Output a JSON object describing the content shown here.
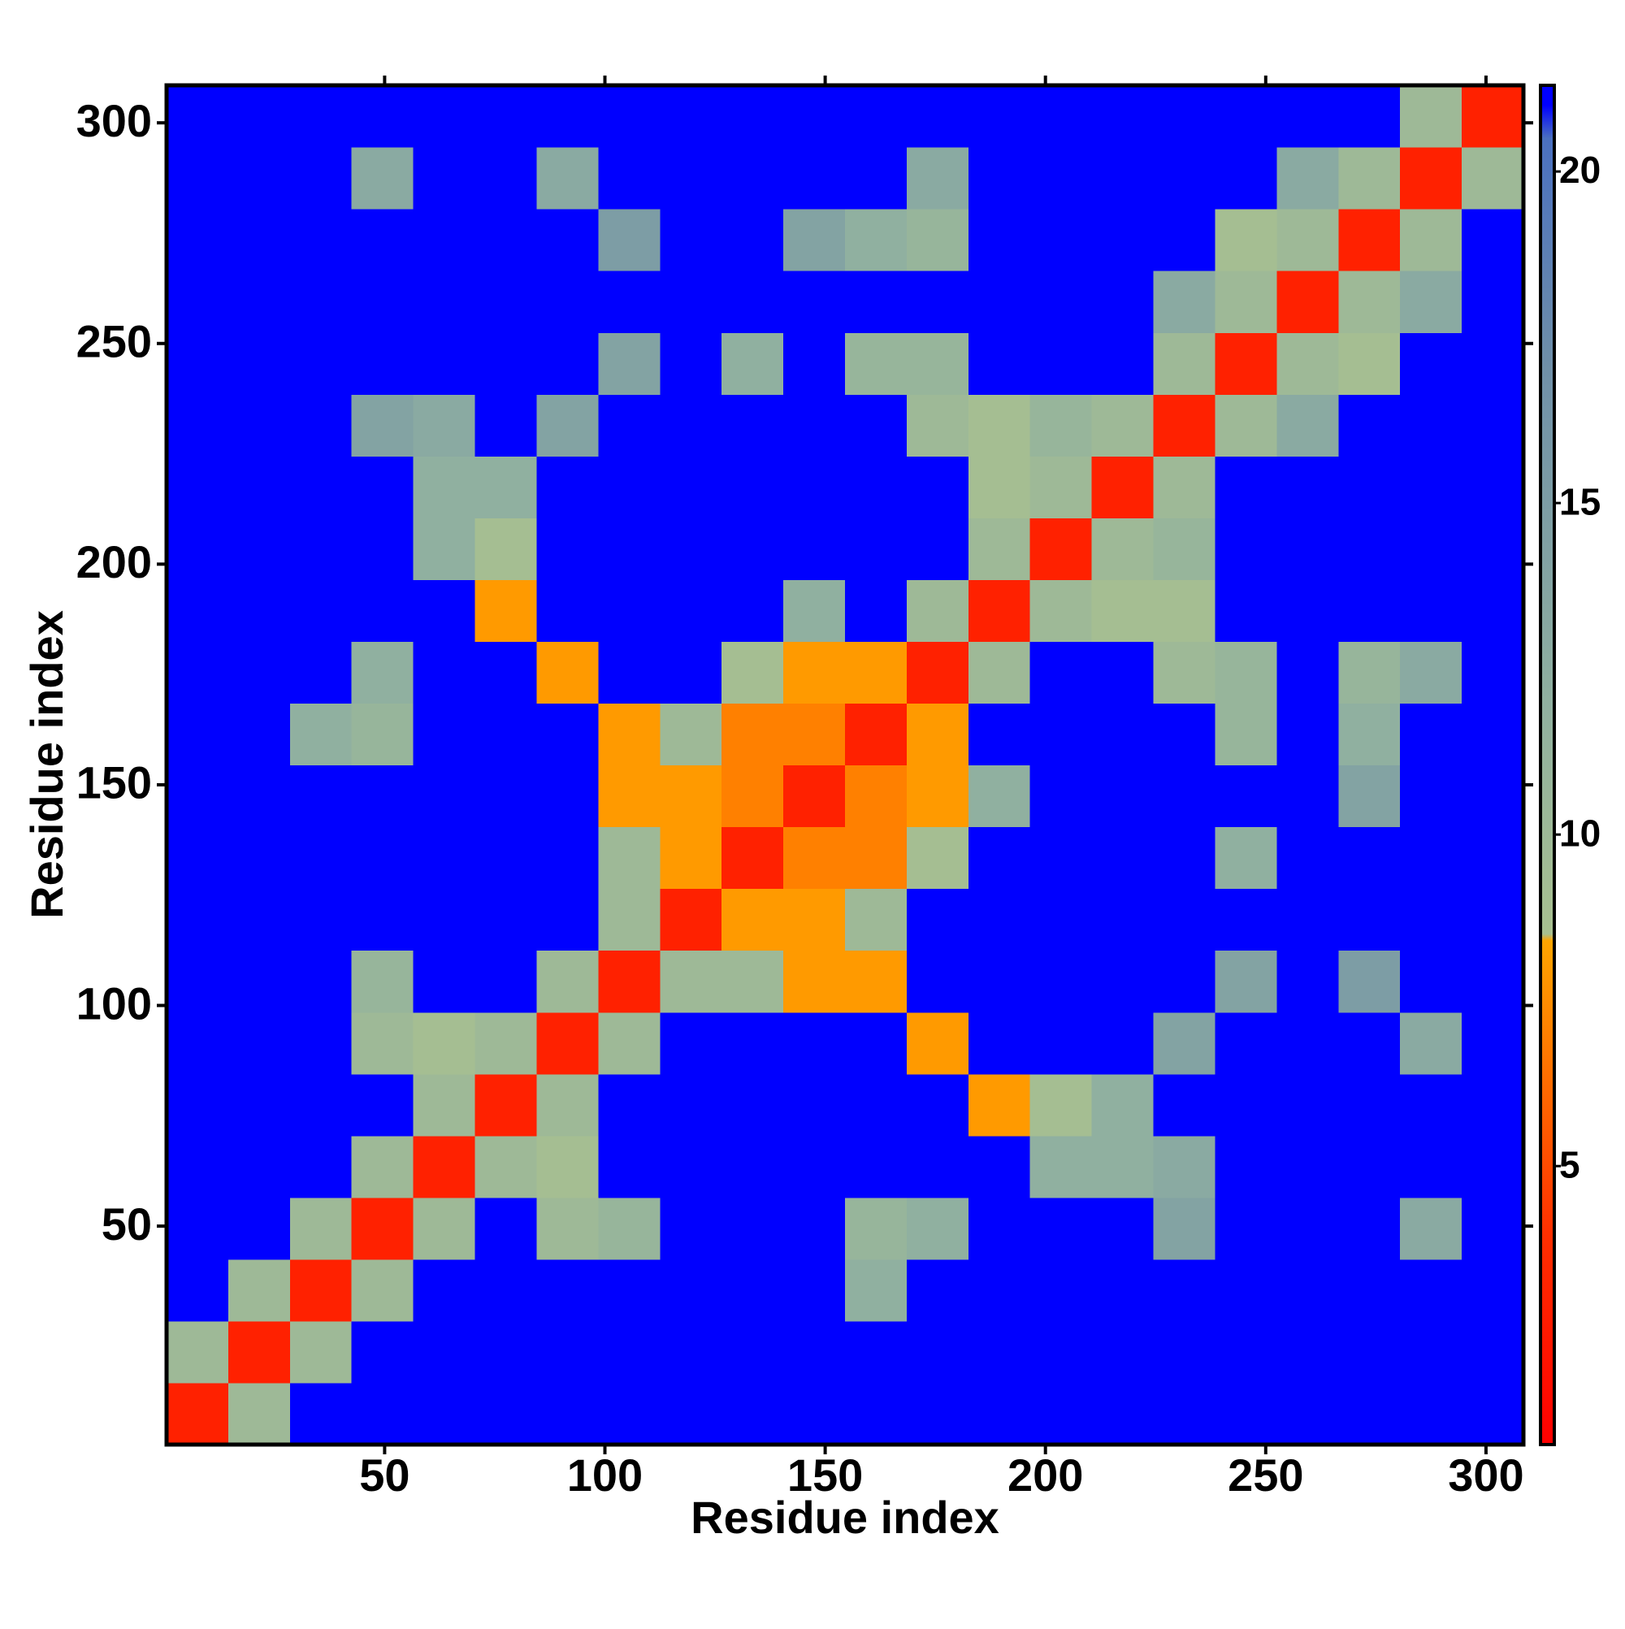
{
  "chart_data": {
    "type": "heatmap",
    "xlabel": "Residue index",
    "ylabel": "Residue index",
    "x": [
      7.5,
      21.5,
      35.5,
      49.5,
      63.5,
      77.5,
      91.5,
      105.5,
      119.5,
      133.5,
      147.5,
      161.5,
      175.5,
      189.5,
      203.5,
      217.5,
      231.5,
      245.5,
      259.5,
      273.5,
      287.5,
      301.5
    ],
    "y": [
      7.5,
      21.5,
      35.5,
      49.5,
      63.5,
      77.5,
      91.5,
      105.5,
      119.5,
      133.5,
      147.5,
      161.5,
      175.5,
      189.5,
      203.5,
      217.5,
      231.5,
      245.5,
      259.5,
      273.5,
      287.5,
      301.5
    ],
    "z": [
      [
        3,
        10,
        21,
        21,
        21,
        21,
        21,
        21,
        21,
        21,
        21,
        21,
        21,
        21,
        21,
        21,
        21,
        21,
        21,
        21,
        21,
        21
      ],
      [
        10,
        3,
        10,
        21,
        21,
        21,
        21,
        21,
        21,
        21,
        21,
        21,
        21,
        21,
        21,
        21,
        21,
        21,
        21,
        21,
        21,
        21
      ],
      [
        21,
        10,
        3,
        10,
        21,
        21,
        21,
        21,
        21,
        21,
        21,
        12,
        21,
        21,
        21,
        21,
        21,
        21,
        21,
        21,
        21,
        21
      ],
      [
        21,
        21,
        10,
        3,
        10,
        21,
        10,
        11,
        21,
        21,
        21,
        11,
        12,
        21,
        21,
        21,
        14,
        21,
        21,
        21,
        13,
        21
      ],
      [
        21,
        21,
        21,
        10,
        3,
        10,
        9,
        21,
        21,
        21,
        21,
        21,
        21,
        21,
        12,
        12,
        13,
        21,
        21,
        21,
        21,
        21
      ],
      [
        21,
        21,
        21,
        21,
        10,
        3,
        10,
        21,
        21,
        21,
        21,
        21,
        21,
        8,
        9,
        12,
        21,
        21,
        21,
        21,
        21,
        21
      ],
      [
        21,
        21,
        21,
        10,
        9,
        10,
        3,
        10,
        21,
        21,
        21,
        21,
        8,
        21,
        21,
        21,
        14,
        21,
        21,
        21,
        13,
        21
      ],
      [
        21,
        21,
        21,
        11,
        21,
        21,
        10,
        3,
        10,
        10,
        8,
        8,
        21,
        21,
        21,
        21,
        21,
        14,
        21,
        15,
        21,
        21
      ],
      [
        21,
        21,
        21,
        21,
        21,
        21,
        21,
        10,
        3,
        8,
        8,
        10,
        21,
        21,
        21,
        21,
        21,
        21,
        21,
        21,
        21,
        21
      ],
      [
        21,
        21,
        21,
        21,
        21,
        21,
        21,
        10,
        8,
        3,
        7,
        7,
        9,
        21,
        21,
        21,
        21,
        12,
        21,
        21,
        21,
        21
      ],
      [
        21,
        21,
        21,
        21,
        21,
        21,
        21,
        8,
        8,
        7,
        3,
        7,
        8,
        12,
        21,
        21,
        21,
        21,
        21,
        14,
        21,
        21
      ],
      [
        21,
        21,
        12,
        11,
        21,
        21,
        21,
        8,
        10,
        7,
        7,
        3,
        8,
        21,
        21,
        21,
        21,
        11,
        21,
        12,
        21,
        21
      ],
      [
        21,
        21,
        21,
        12,
        21,
        21,
        8,
        21,
        21,
        9,
        8,
        8,
        3,
        10,
        21,
        21,
        10,
        11,
        21,
        11,
        13,
        21
      ],
      [
        21,
        21,
        21,
        21,
        21,
        8,
        21,
        21,
        21,
        21,
        12,
        21,
        10,
        3,
        10,
        9,
        9,
        21,
        21,
        21,
        21,
        21
      ],
      [
        21,
        21,
        21,
        21,
        12,
        9,
        21,
        21,
        21,
        21,
        21,
        21,
        21,
        10,
        3,
        10,
        11,
        21,
        21,
        21,
        21,
        21
      ],
      [
        21,
        21,
        21,
        21,
        12,
        12,
        21,
        21,
        21,
        21,
        21,
        21,
        21,
        9,
        10,
        3,
        10,
        21,
        21,
        21,
        21,
        21
      ],
      [
        21,
        21,
        21,
        14,
        13,
        21,
        14,
        21,
        21,
        21,
        21,
        21,
        10,
        9,
        11,
        10,
        3,
        10,
        13,
        21,
        21,
        21
      ],
      [
        21,
        21,
        21,
        21,
        21,
        21,
        21,
        14,
        21,
        12,
        21,
        11,
        11,
        21,
        21,
        21,
        10,
        3,
        10,
        9,
        21,
        21
      ],
      [
        21,
        21,
        21,
        21,
        21,
        21,
        21,
        21,
        21,
        21,
        21,
        21,
        21,
        21,
        21,
        21,
        13,
        10,
        3,
        10,
        13,
        21
      ],
      [
        21,
        21,
        21,
        21,
        21,
        21,
        21,
        15,
        21,
        21,
        14,
        12,
        11,
        21,
        21,
        21,
        21,
        9,
        10,
        3,
        10,
        21
      ],
      [
        21,
        21,
        21,
        13,
        21,
        21,
        13,
        21,
        21,
        21,
        21,
        21,
        13,
        21,
        21,
        21,
        21,
        21,
        13,
        10,
        3,
        10
      ],
      [
        21,
        21,
        21,
        21,
        21,
        21,
        21,
        21,
        21,
        21,
        21,
        21,
        21,
        21,
        21,
        21,
        21,
        21,
        21,
        21,
        10,
        3
      ]
    ],
    "xlim": [
      0.5,
      308.5
    ],
    "ylim": [
      0.5,
      308.5
    ],
    "xticks": [
      50,
      100,
      150,
      200,
      250,
      300
    ],
    "yticks": [
      50,
      100,
      150,
      200,
      250,
      300
    ],
    "colorbar": {
      "lim": [
        0.8,
        21.3
      ],
      "ticks": [
        5,
        10,
        15,
        20
      ],
      "colorscale": [
        [
          0.8,
          "#ff0000"
        ],
        [
          4,
          "#ff3000"
        ],
        [
          8.4,
          "#ffa500"
        ],
        [
          8.5,
          "#a8c090"
        ],
        [
          12,
          "#90b0a0"
        ],
        [
          17,
          "#7090a8"
        ],
        [
          20.5,
          "#4a70c0"
        ],
        [
          21,
          "#0000ff"
        ]
      ]
    }
  }
}
